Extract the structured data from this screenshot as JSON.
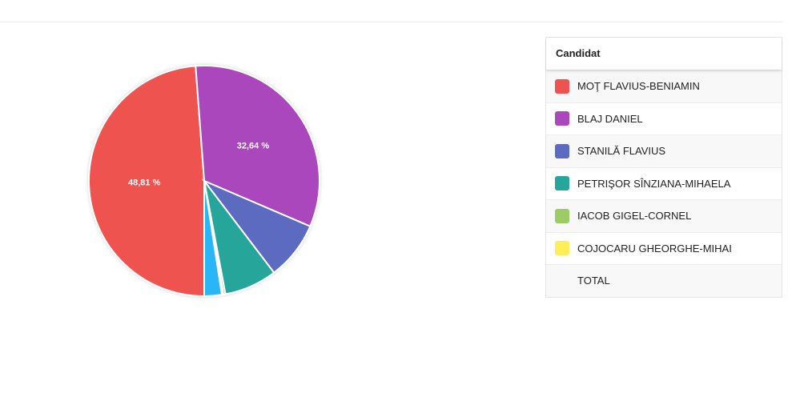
{
  "chart_data": {
    "type": "pie",
    "categories": [
      "MOŢ FLAVIUS-BENIAMIN",
      "BLAJ DANIEL",
      "STANILĂ FLAVIUS",
      "PETRIŞOR SÎNZIANA-MIHAELA",
      "IACOB GIGEL-CORNEL",
      "COJOCARU GHEORGHE-MIHAI",
      null
    ],
    "values": [
      48.81,
      32.64,
      8.2,
      7.4,
      0.3,
      0.2,
      2.45
    ],
    "value_labels": [
      "48,81 %",
      "32,64 %",
      null,
      null,
      null,
      null,
      null
    ],
    "colors": [
      "#ef5350",
      "#ab47bc",
      "#5c6bc0",
      "#26a69a",
      "#9ccc65",
      "#ffee58",
      "#29b6f6"
    ],
    "legend_title": "Candidat",
    "total_label": "TOTAL"
  }
}
